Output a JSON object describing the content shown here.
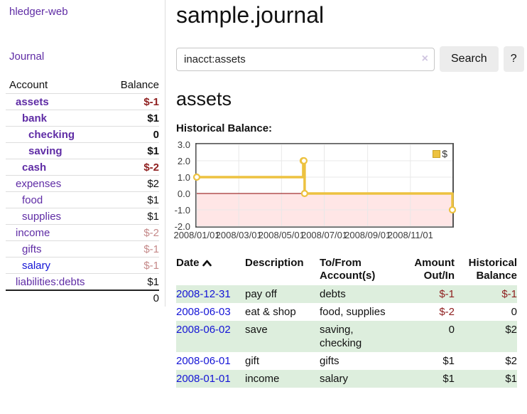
{
  "colors": {
    "link_purple": "#5f2ca5",
    "link_blue": "#1414d6",
    "negative": "#8f2020",
    "negative_dim": "#c58989",
    "row_shade_green": "#ddeedd",
    "divider_gray": "#dddddd",
    "button_gray": "#ececec"
  },
  "sidebar": {
    "brand": "hledger-web",
    "journal_link": "Journal",
    "accounts_table": {
      "headers": {
        "account": "Account",
        "balance": "Balance"
      },
      "rows": [
        {
          "name": "assets",
          "balance": "$-1",
          "level": 1,
          "bold": true,
          "balance_tone": "negative"
        },
        {
          "name": "bank",
          "balance": "$1",
          "level": 2,
          "bold": true,
          "balance_tone": "normal"
        },
        {
          "name": "checking",
          "balance": "0",
          "level": 3,
          "bold": true,
          "balance_tone": "normal"
        },
        {
          "name": "saving",
          "balance": "$1",
          "level": 3,
          "bold": true,
          "balance_tone": "normal"
        },
        {
          "name": "cash",
          "balance": "$-2",
          "level": 2,
          "bold": true,
          "balance_tone": "negative"
        },
        {
          "name": "expenses",
          "balance": "$2",
          "level": 1,
          "bold": false,
          "balance_tone": "normal"
        },
        {
          "name": "food",
          "balance": "$1",
          "level": 2,
          "bold": false,
          "balance_tone": "normal"
        },
        {
          "name": "supplies",
          "balance": "$1",
          "level": 2,
          "bold": false,
          "balance_tone": "normal"
        },
        {
          "name": "income",
          "balance": "$-2",
          "level": 1,
          "bold": false,
          "balance_tone": "negative-dim"
        },
        {
          "name": "gifts",
          "balance": "$-1",
          "level": 2,
          "bold": false,
          "balance_tone": "negative-dim"
        },
        {
          "name": "salary",
          "balance": "$-1",
          "level": 2,
          "bold": false,
          "balance_tone": "negative-dim",
          "link_tone": "blue"
        },
        {
          "name": "liabilities:debts",
          "balance": "$1",
          "level": 1,
          "bold": false,
          "balance_tone": "normal"
        }
      ],
      "total": "0"
    }
  },
  "main": {
    "title": "sample.journal",
    "search": {
      "value": "inacct:assets",
      "clear_icon": "×",
      "button": "Search",
      "help_button": "?"
    },
    "account_heading": "assets",
    "chart_heading": "Historical Balance:"
  },
  "chart_data": {
    "type": "line",
    "step": true,
    "title": "Historical Balance:",
    "series": [
      {
        "name": "$",
        "color": "#EDC240",
        "points": [
          [
            "2008-01-01",
            1
          ],
          [
            "2008-06-01",
            2
          ],
          [
            "2008-06-02",
            2
          ],
          [
            "2008-06-03",
            0
          ],
          [
            "2008-12-31",
            -1
          ]
        ]
      }
    ],
    "x_range": [
      "2008-01-01",
      "2008-12-31"
    ],
    "ylim": [
      -2,
      3
    ],
    "y_ticks": [
      "3.0",
      "2.0",
      "1.0",
      "0.0",
      "-1.0",
      "-2.0"
    ],
    "x_ticks": [
      "2008/01/01",
      "2008/03/01",
      "2008/05/01",
      "2008/07/01",
      "2008/09/01",
      "2008/11/01"
    ],
    "legend_position": "top-right",
    "grid_color": "#e8e8e8",
    "border_color": "#545454",
    "negative_region_fill": "#ffe6e6",
    "zero_line_color": "#8b0000",
    "marker_fill": "#ffffff"
  },
  "register_table": {
    "headers": {
      "date": "Date",
      "description": "Description",
      "accounts": "To/From Account(s)",
      "amount": "Amount Out/In",
      "balance": "Historical Balance"
    },
    "rows": [
      {
        "date": "2008-12-31",
        "description": "pay off",
        "accounts": "debts",
        "amount": "$-1",
        "amount_tone": "negative",
        "balance": "$-1",
        "balance_tone": "negative",
        "shaded": true
      },
      {
        "date": "2008-06-03",
        "description": "eat & shop",
        "accounts": "food, supplies",
        "amount": "$-2",
        "amount_tone": "negative",
        "balance": "0",
        "balance_tone": "normal",
        "shaded": false
      },
      {
        "date": "2008-06-02",
        "description": "save",
        "accounts": "saving, checking",
        "amount": "0",
        "amount_tone": "normal",
        "balance": "$2",
        "balance_tone": "normal",
        "shaded": true
      },
      {
        "date": "2008-06-01",
        "description": "gift",
        "accounts": "gifts",
        "amount": "$1",
        "amount_tone": "normal",
        "balance": "$2",
        "balance_tone": "normal",
        "shaded": false
      },
      {
        "date": "2008-01-01",
        "description": "income",
        "accounts": "salary",
        "amount": "$1",
        "amount_tone": "normal",
        "balance": "$1",
        "balance_tone": "normal",
        "shaded": true
      }
    ]
  }
}
